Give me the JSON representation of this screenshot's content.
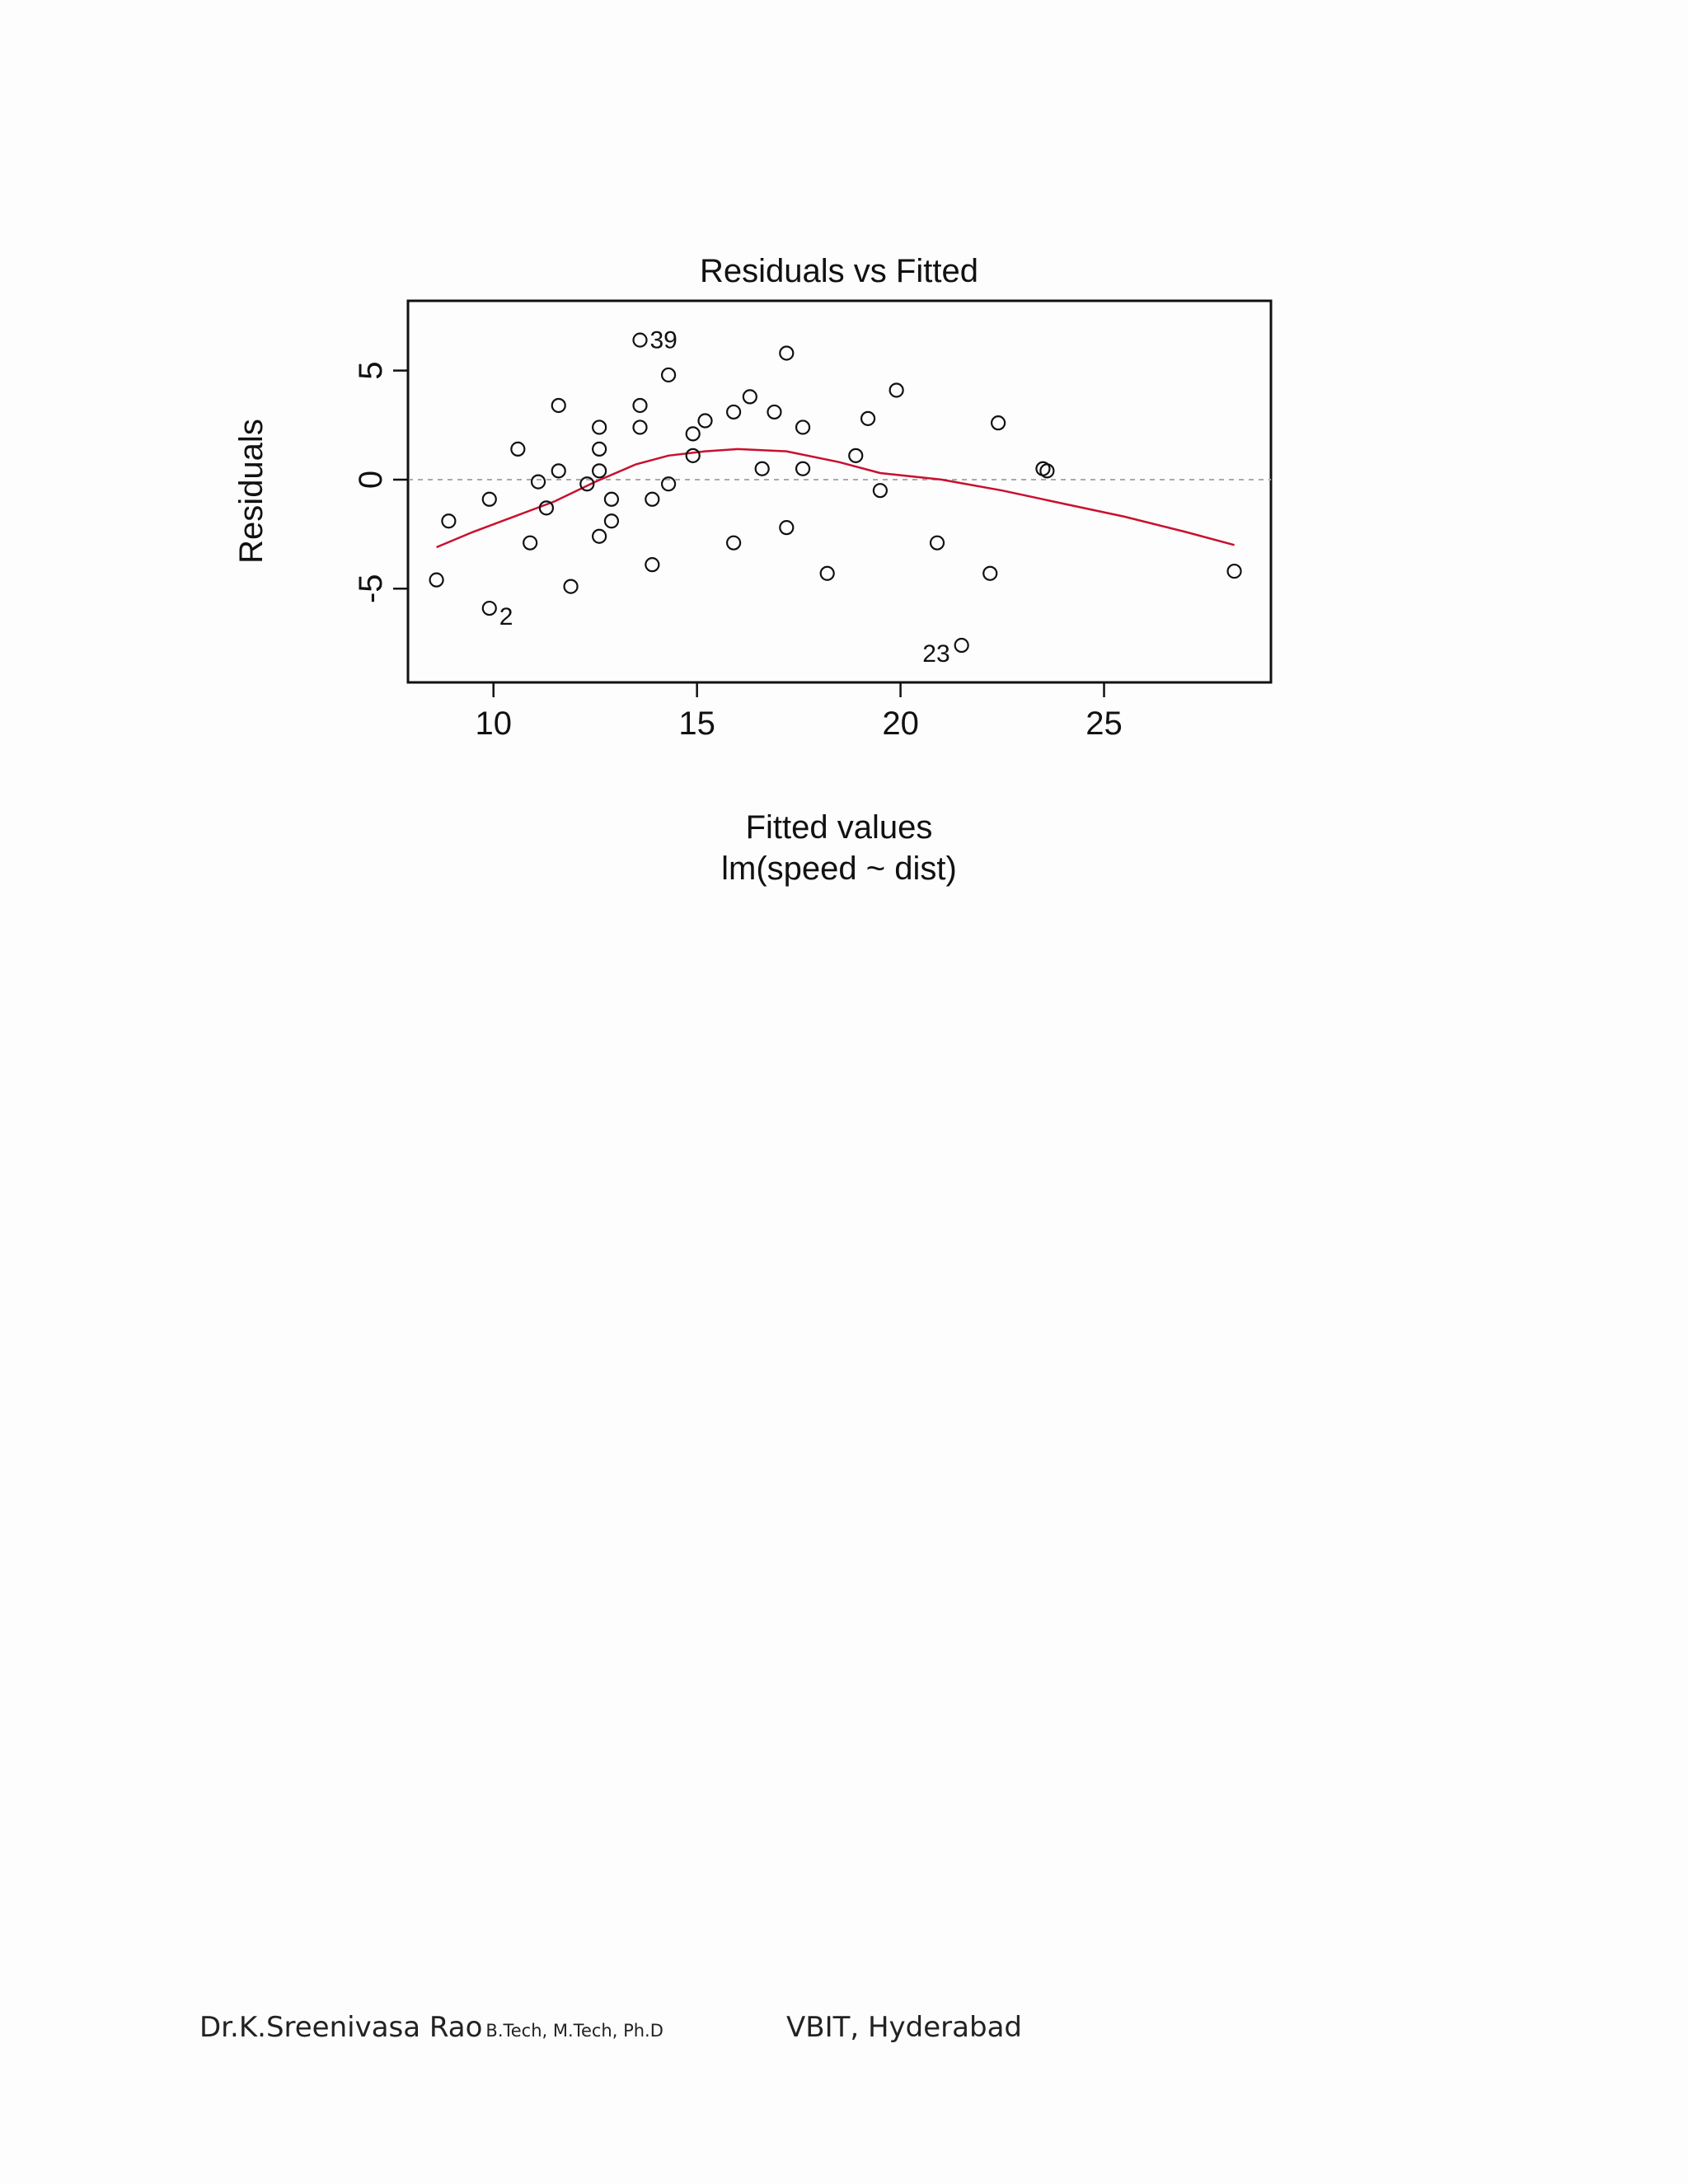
{
  "chart_data": {
    "type": "scatter",
    "title": "Residuals vs Fitted",
    "xlabel": "Fitted values",
    "sublabel": "lm(speed ~ dist)",
    "ylabel": "Residuals",
    "xlim": [
      7.9,
      29.1
    ],
    "ylim": [
      -9.3,
      8.2
    ],
    "xticks": [
      10,
      15,
      20,
      25
    ],
    "yticks": [
      -5,
      0,
      5
    ],
    "xtick_labels": [
      "10",
      "15",
      "20",
      "25"
    ],
    "ytick_labels": [
      "-5",
      "0",
      "5"
    ],
    "reference_line": 0,
    "colors": {
      "points": "#111111",
      "smooth": "#c8102e",
      "reference": "#aaaaaa"
    },
    "points": [
      {
        "x": 8.6,
        "y": -4.6
      },
      {
        "x": 8.9,
        "y": -1.9
      },
      {
        "x": 9.9,
        "y": -5.9,
        "label": "2"
      },
      {
        "x": 9.9,
        "y": -0.9
      },
      {
        "x": 10.6,
        "y": 1.4
      },
      {
        "x": 10.9,
        "y": -2.9
      },
      {
        "x": 11.1,
        "y": -0.1
      },
      {
        "x": 11.3,
        "y": -1.3
      },
      {
        "x": 11.6,
        "y": 3.4
      },
      {
        "x": 11.6,
        "y": 0.4
      },
      {
        "x": 11.9,
        "y": -4.9
      },
      {
        "x": 12.3,
        "y": -0.2
      },
      {
        "x": 12.6,
        "y": 2.4
      },
      {
        "x": 12.6,
        "y": 1.4
      },
      {
        "x": 12.6,
        "y": 0.4
      },
      {
        "x": 12.6,
        "y": -2.6
      },
      {
        "x": 12.9,
        "y": -0.9
      },
      {
        "x": 12.9,
        "y": -1.9
      },
      {
        "x": 13.6,
        "y": 6.4,
        "label": "39"
      },
      {
        "x": 13.6,
        "y": 3.4
      },
      {
        "x": 13.6,
        "y": 2.4
      },
      {
        "x": 13.9,
        "y": -0.9
      },
      {
        "x": 13.9,
        "y": -3.9
      },
      {
        "x": 14.3,
        "y": 4.8
      },
      {
        "x": 14.3,
        "y": -0.2
      },
      {
        "x": 14.9,
        "y": 2.1
      },
      {
        "x": 14.9,
        "y": 1.1
      },
      {
        "x": 15.2,
        "y": 2.7
      },
      {
        "x": 15.9,
        "y": 3.1
      },
      {
        "x": 15.9,
        "y": -2.9
      },
      {
        "x": 16.3,
        "y": 3.8
      },
      {
        "x": 16.6,
        "y": 0.5
      },
      {
        "x": 16.9,
        "y": 3.1
      },
      {
        "x": 17.2,
        "y": 5.8
      },
      {
        "x": 17.2,
        "y": -2.2
      },
      {
        "x": 17.6,
        "y": 2.4
      },
      {
        "x": 17.6,
        "y": 0.5
      },
      {
        "x": 18.2,
        "y": -4.3
      },
      {
        "x": 18.9,
        "y": 1.1
      },
      {
        "x": 19.2,
        "y": 2.8
      },
      {
        "x": 19.5,
        "y": -0.5
      },
      {
        "x": 19.9,
        "y": 4.1
      },
      {
        "x": 20.9,
        "y": -2.9
      },
      {
        "x": 21.5,
        "y": -7.6,
        "label": "23"
      },
      {
        "x": 22.2,
        "y": -4.3
      },
      {
        "x": 22.4,
        "y": 2.6
      },
      {
        "x": 23.5,
        "y": 0.5
      },
      {
        "x": 23.6,
        "y": 0.4
      },
      {
        "x": 28.2,
        "y": -4.2
      }
    ],
    "smooth": [
      {
        "x": 8.6,
        "y": -3.1
      },
      {
        "x": 9.5,
        "y": -2.4
      },
      {
        "x": 10.5,
        "y": -1.7
      },
      {
        "x": 11.5,
        "y": -1.0
      },
      {
        "x": 12.5,
        "y": -0.1
      },
      {
        "x": 13.5,
        "y": 0.7
      },
      {
        "x": 14.3,
        "y": 1.1
      },
      {
        "x": 15.2,
        "y": 1.3
      },
      {
        "x": 16.0,
        "y": 1.4
      },
      {
        "x": 17.2,
        "y": 1.3
      },
      {
        "x": 18.5,
        "y": 0.8
      },
      {
        "x": 19.5,
        "y": 0.3
      },
      {
        "x": 21.0,
        "y": 0.0
      },
      {
        "x": 22.5,
        "y": -0.5
      },
      {
        "x": 24.0,
        "y": -1.1
      },
      {
        "x": 25.5,
        "y": -1.7
      },
      {
        "x": 27.0,
        "y": -2.4
      },
      {
        "x": 28.2,
        "y": -3.0
      }
    ]
  },
  "footer": {
    "author": "Dr.K.Sreenivasa Rao",
    "degrees": "B.Tech, M.Tech, Ph.D",
    "institute": "VBIT, Hyderabad"
  }
}
